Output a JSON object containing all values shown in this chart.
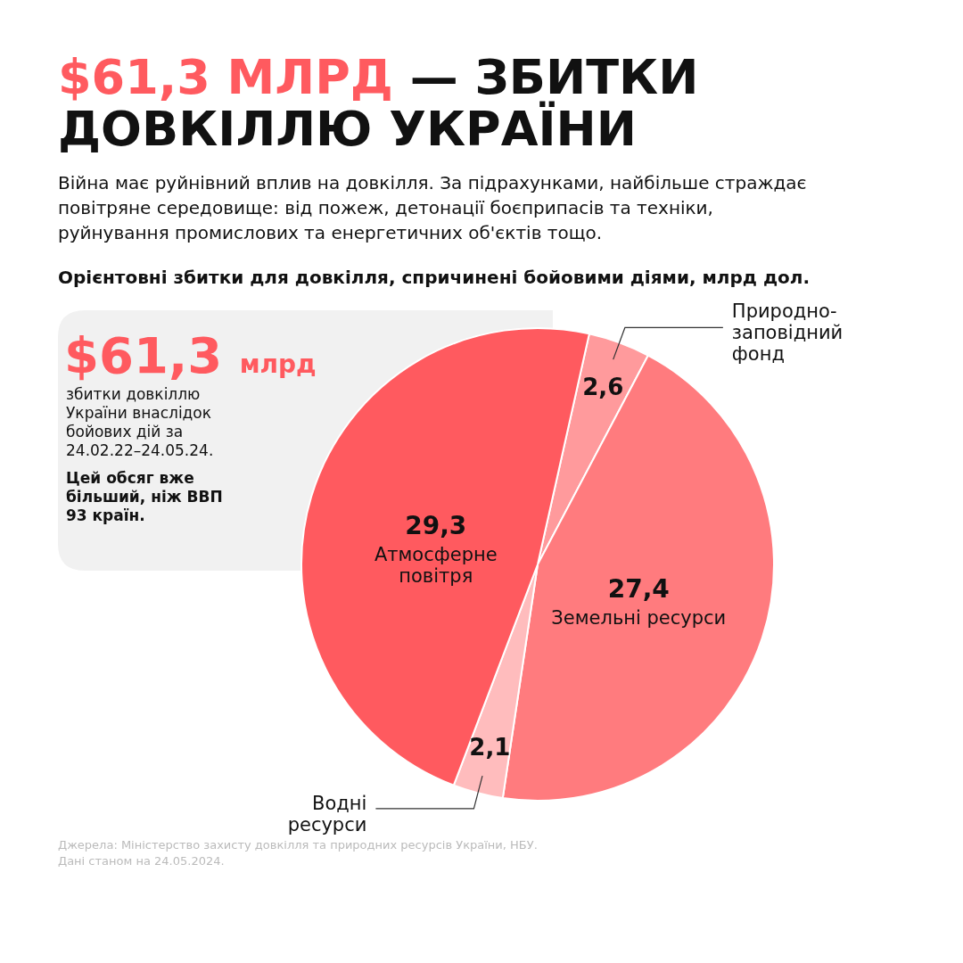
{
  "chart_data": {
    "type": "pie",
    "title": "$61,3 МЛРД — ЗБИТКИ ДОВКІЛЛЮ УКРАЇНИ",
    "subtitle": "Війна має руйнівний вплив на довкілля. За підрахунками, найбільше страждає повітряне середовище: від пожеж, детонації боєприпасів та техніки, руйнування промислових та енергетичних об'єктів тощо.",
    "annotations": [
      "Орієнтовні збитки для довкілля, спричинені бойовими діями, млрд дол.",
      "$61,3 млрд",
      "збитки довкіллю України внаслідок бойових дій за 24.02.22–24.05.24.",
      "Цей обсяг вже більший, ніж ВВП 93 країн.",
      "Джерела: Міністерство захисту довкілля та природних ресурсів України, НБУ.",
      "Дані станом на 24.05.2024."
    ],
    "categories": [
      "Природно-заповідний фонд",
      "Земельні ресурси",
      "Водні ресурси",
      "Атмосферне повітря"
    ],
    "values": [
      2.6,
      27.4,
      2.1,
      29.3
    ],
    "value_labels": [
      "2,6",
      "27,4",
      "2,1",
      "29,3"
    ],
    "colors": [
      "#ff9a9c",
      "#ff7b7e",
      "#ffbcbd",
      "#ff5a5f"
    ]
  }
}
